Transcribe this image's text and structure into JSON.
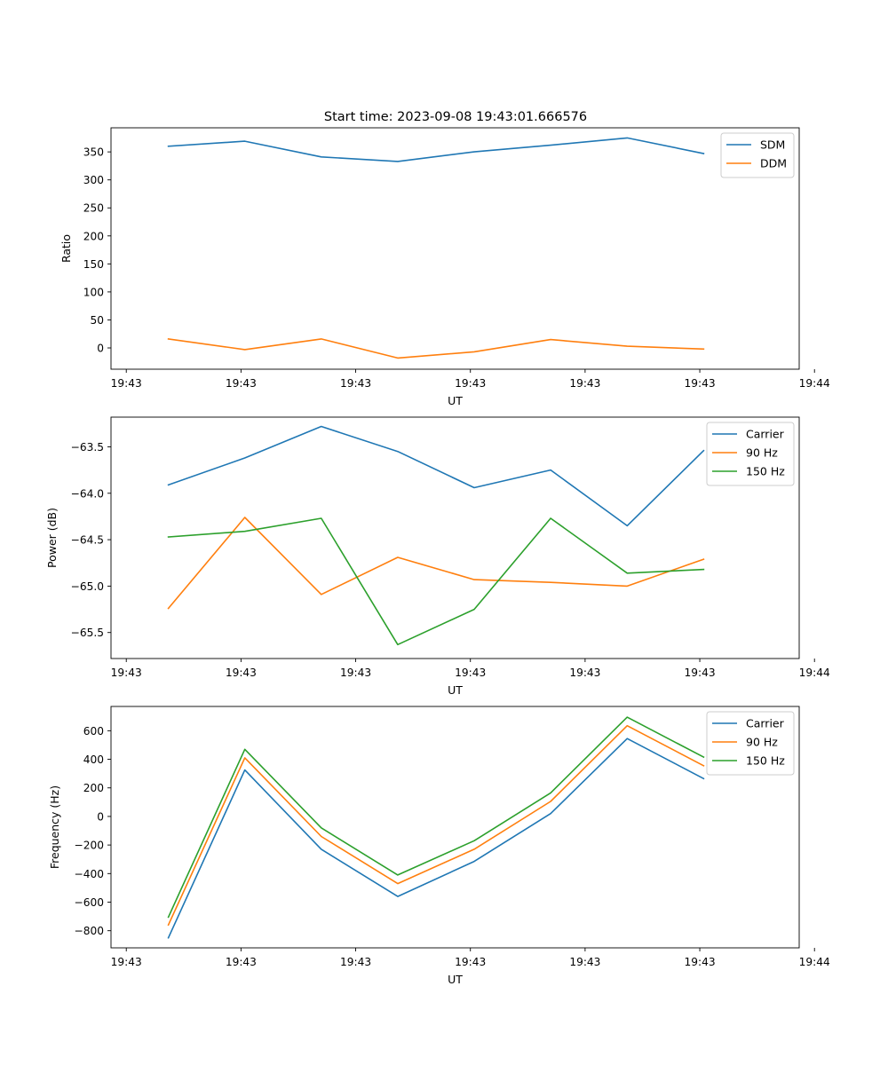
{
  "figure": {
    "title": "Start time: 2023-09-08 19:43:01.666576"
  },
  "colors": {
    "blue": "#1f77b4",
    "orange": "#ff7f0e",
    "green": "#2ca02c"
  },
  "chart_data": [
    {
      "type": "line",
      "title": "Start time: 2023-09-08 19:43:01.666576",
      "xlabel": "UT",
      "ylabel": "Ratio",
      "x": [
        1,
        2,
        3,
        4,
        5,
        6,
        7,
        8
      ],
      "xlim": [
        0.25,
        9.25
      ],
      "xticks": [
        0.45,
        1.95,
        3.45,
        4.95,
        6.45,
        7.95,
        9.45
      ],
      "xtick_labels": [
        "19:43",
        "19:43",
        "19:43",
        "19:43",
        "19:43",
        "19:43",
        "19:44"
      ],
      "ylim": [
        -38,
        393
      ],
      "yticks": [
        0,
        50,
        100,
        150,
        200,
        250,
        300,
        350
      ],
      "ytick_labels": [
        "0",
        "50",
        "100",
        "150",
        "200",
        "250",
        "300",
        "350"
      ],
      "legend": "top-right",
      "series": [
        {
          "name": "SDM",
          "color": "#1f77b4",
          "values": [
            360,
            369,
            341,
            333,
            350,
            362,
            375,
            347
          ]
        },
        {
          "name": "DDM",
          "color": "#ff7f0e",
          "values": [
            16,
            -3,
            16,
            -18,
            -7,
            15,
            3,
            -2
          ]
        }
      ]
    },
    {
      "type": "line",
      "title": "",
      "xlabel": "UT",
      "ylabel": "Power (dB)",
      "x": [
        1,
        2,
        3,
        4,
        5,
        6,
        7,
        8
      ],
      "xlim": [
        0.25,
        9.25
      ],
      "xticks": [
        0.45,
        1.95,
        3.45,
        4.95,
        6.45,
        7.95,
        9.45
      ],
      "xtick_labels": [
        "19:43",
        "19:43",
        "19:43",
        "19:43",
        "19:43",
        "19:43",
        "19:44"
      ],
      "ylim": [
        -65.78,
        -63.18
      ],
      "yticks": [
        -65.5,
        -65.0,
        -64.5,
        -64.0,
        -63.5
      ],
      "ytick_labels": [
        "−65.5",
        "−65.0",
        "−64.5",
        "−64.0",
        "−63.5"
      ],
      "legend": "top-right",
      "series": [
        {
          "name": "Carrier",
          "color": "#1f77b4",
          "values": [
            -63.91,
            -63.62,
            -63.28,
            -63.55,
            -63.94,
            -63.75,
            -64.35,
            -63.54
          ]
        },
        {
          "name": "90 Hz",
          "color": "#ff7f0e",
          "values": [
            -65.24,
            -64.26,
            -65.09,
            -64.69,
            -64.93,
            -64.96,
            -65.0,
            -64.71
          ]
        },
        {
          "name": "150 Hz",
          "color": "#2ca02c",
          "values": [
            -64.47,
            -64.41,
            -64.27,
            -65.63,
            -65.25,
            -64.27,
            -64.86,
            -64.82
          ]
        }
      ]
    },
    {
      "type": "line",
      "title": "",
      "xlabel": "UT",
      "ylabel": "Frequency (Hz)",
      "x": [
        1,
        2,
        3,
        4,
        5,
        6,
        7,
        8
      ],
      "xlim": [
        0.25,
        9.25
      ],
      "xticks": [
        0.45,
        1.95,
        3.45,
        4.95,
        6.45,
        7.95,
        9.45
      ],
      "xtick_labels": [
        "19:43",
        "19:43",
        "19:43",
        "19:43",
        "19:43",
        "19:43",
        "19:44"
      ],
      "ylim": [
        -920,
        770
      ],
      "yticks": [
        -800,
        -600,
        -400,
        -200,
        0,
        200,
        400,
        600
      ],
      "ytick_labels": [
        "−800",
        "−600",
        "−400",
        "−200",
        "0",
        "200",
        "400",
        "600"
      ],
      "legend": "top-right",
      "series": [
        {
          "name": "Carrier",
          "color": "#1f77b4",
          "values": [
            -850,
            325,
            -230,
            -560,
            -315,
            20,
            545,
            265
          ]
        },
        {
          "name": "90 Hz",
          "color": "#ff7f0e",
          "values": [
            -760,
            410,
            -140,
            -470,
            -230,
            105,
            635,
            355
          ]
        },
        {
          "name": "150 Hz",
          "color": "#2ca02c",
          "values": [
            -705,
            470,
            -80,
            -410,
            -170,
            165,
            695,
            415
          ]
        }
      ]
    }
  ]
}
